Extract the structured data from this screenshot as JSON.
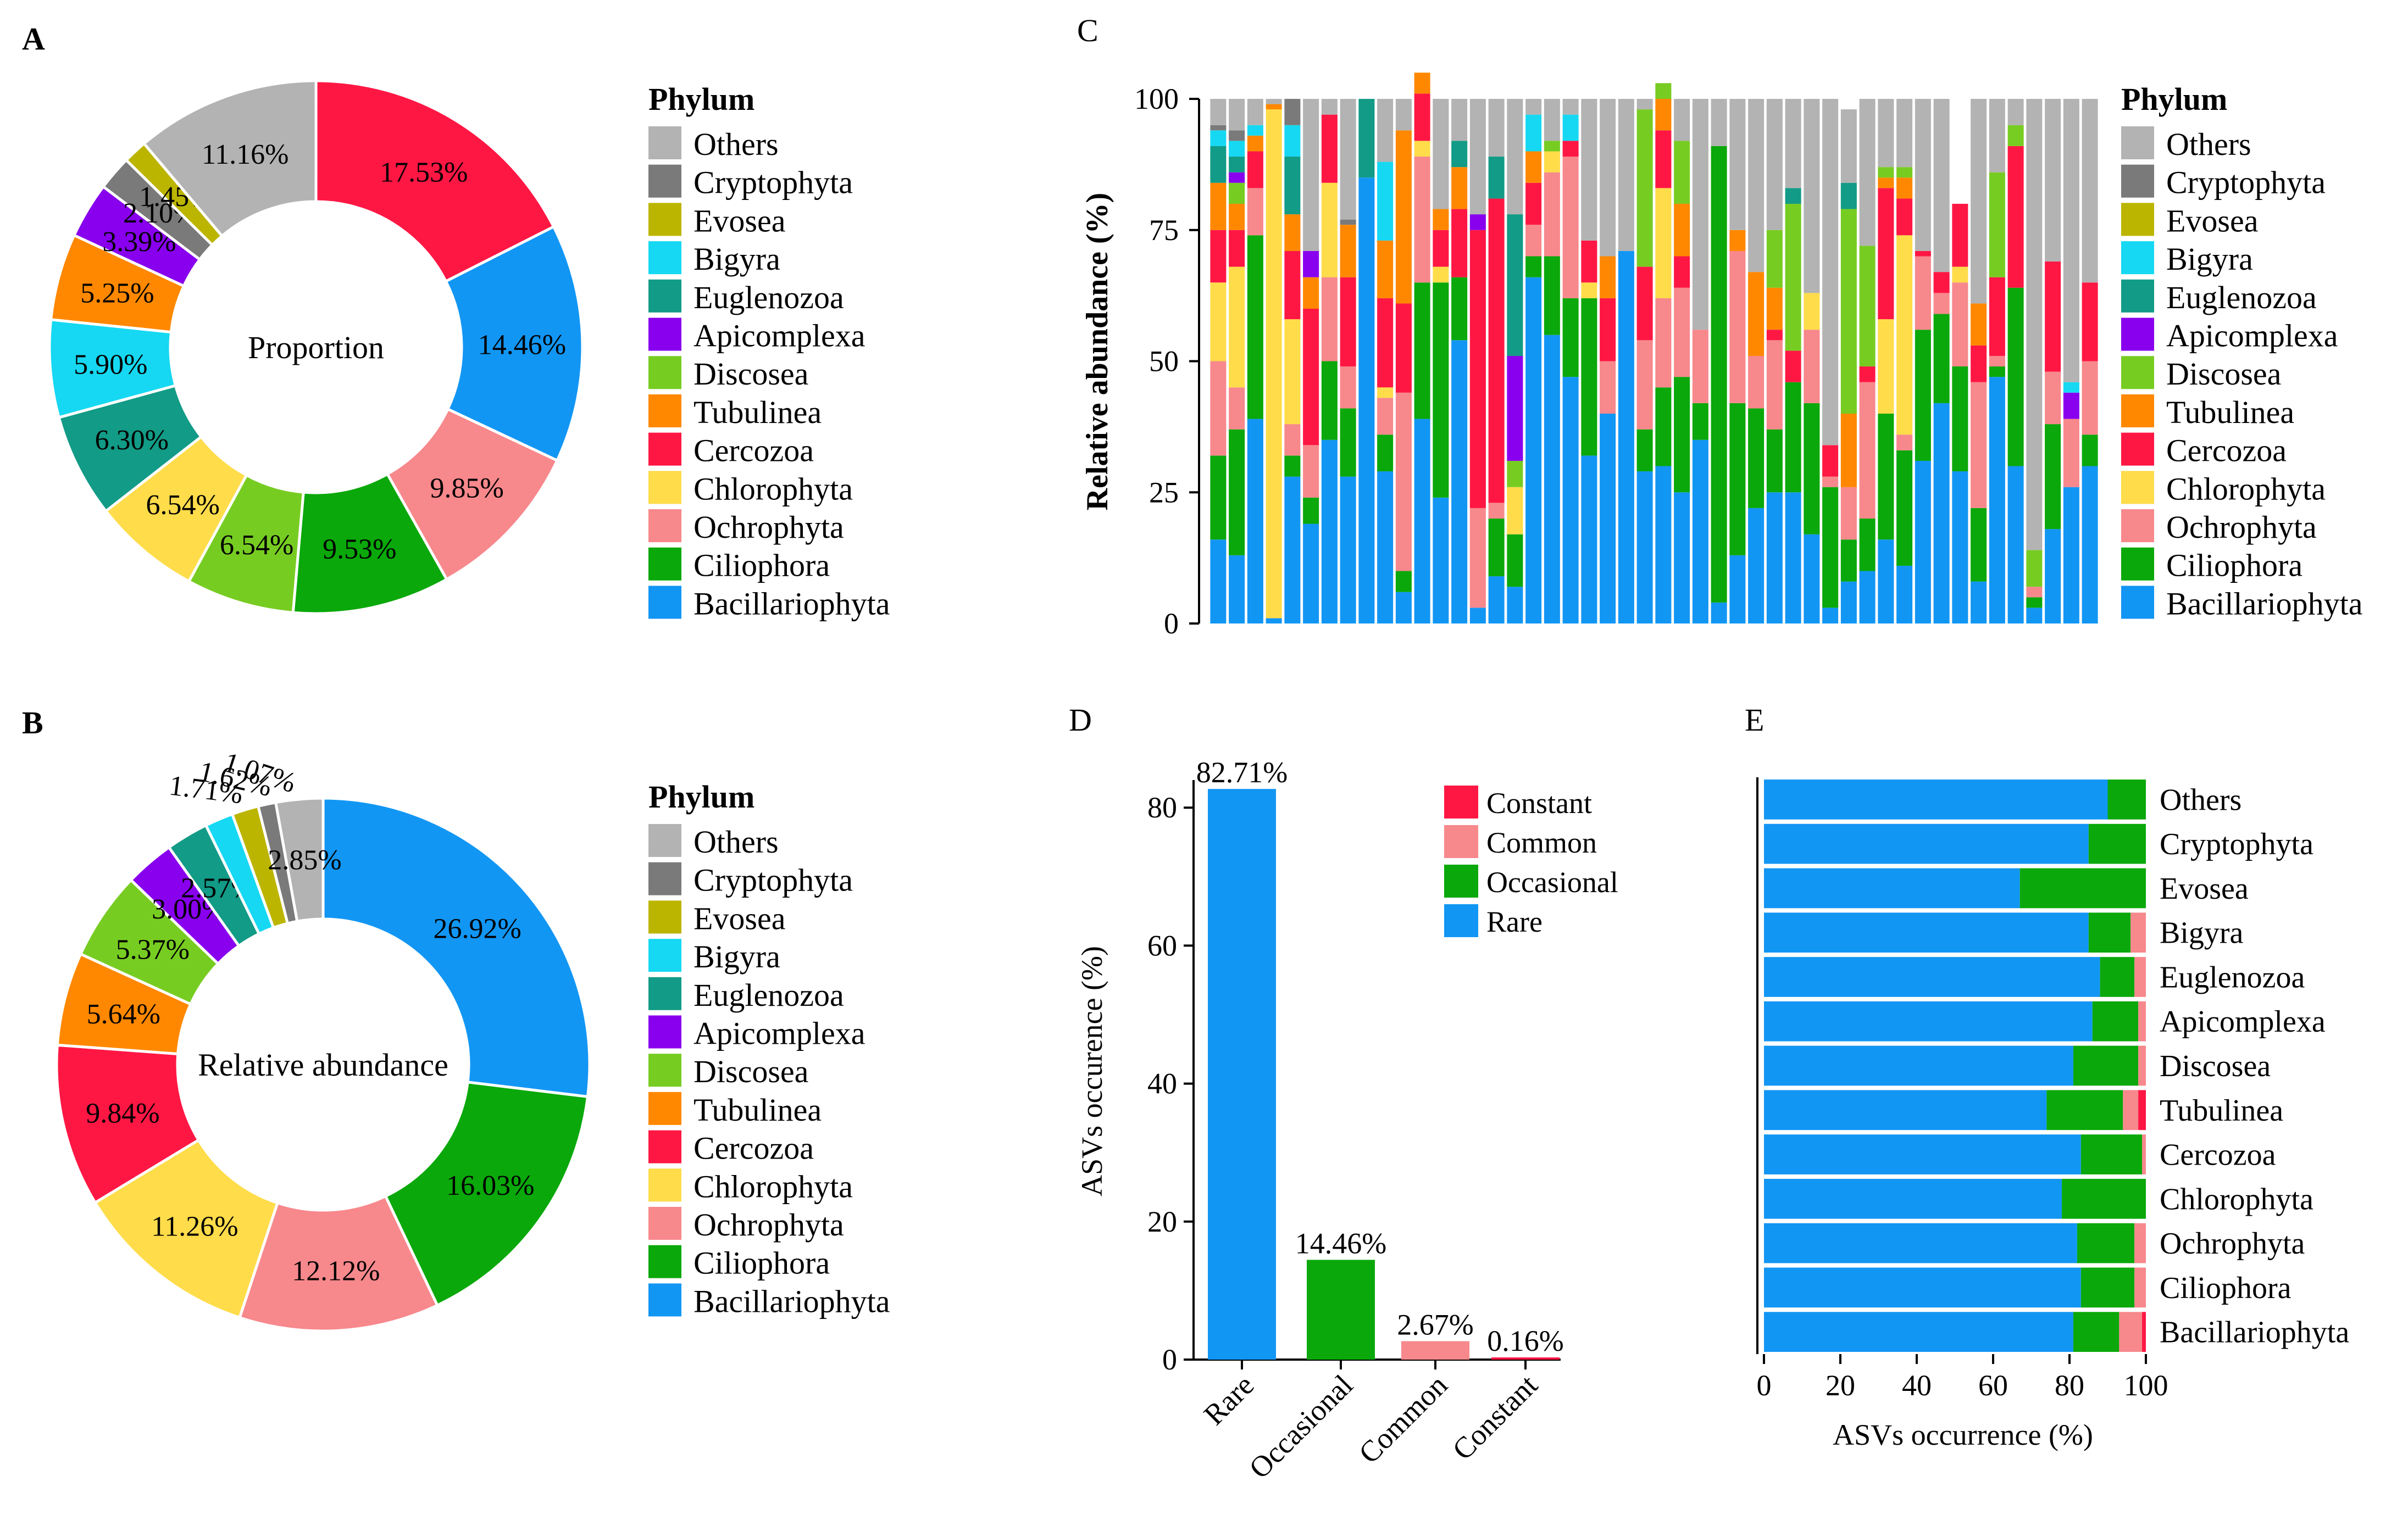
{
  "colors": {
    "Others": "#b3b3b3",
    "Cryptophyta": "#7a7a7a",
    "Evosea": "#bcb500",
    "Bigyra": "#16d8f2",
    "Euglenozoa": "#129b86",
    "Apicomplexa": "#8800ee",
    "Discosea": "#77cc22",
    "Tubulinea": "#ff8800",
    "Cercozoa": "#ff1744",
    "Chlorophyta": "#ffdc4a",
    "Ochrophyta": "#f7888c",
    "Ciliophora": "#0aa80a",
    "Bacillariophyta": "#1296f4",
    "Constant": "#ff1744",
    "Common": "#f7888c",
    "Occasional": "#0aa80a",
    "Rare": "#1296f4"
  },
  "legend": {
    "title": "Phylum",
    "items": [
      "Others",
      "Cryptophyta",
      "Evosea",
      "Bigyra",
      "Euglenozoa",
      "Apicomplexa",
      "Discosea",
      "Tubulinea",
      "Cercozoa",
      "Chlorophyta",
      "Ochrophyta",
      "Ciliophora",
      "Bacillariophyta"
    ]
  },
  "panel_labels": {
    "A": "A",
    "B": "B",
    "C": "C",
    "D": "D",
    "E": "E"
  },
  "chart_data": [
    {
      "id": "A",
      "type": "pie",
      "title": "Proportion",
      "slices": [
        {
          "name": "Cercozoa",
          "value": 17.53,
          "label": "17.53%"
        },
        {
          "name": "Bacillariophyta",
          "value": 14.46,
          "label": "14.46%"
        },
        {
          "name": "Ochrophyta",
          "value": 9.85,
          "label": "9.85%"
        },
        {
          "name": "Ciliophora",
          "value": 9.53,
          "label": "9.53%"
        },
        {
          "name": "Discosea",
          "value": 6.54,
          "label": "6.54%"
        },
        {
          "name": "Chlorophyta",
          "value": 6.54,
          "label": "6.54%"
        },
        {
          "name": "Euglenozoa",
          "value": 6.3,
          "label": "6.30%"
        },
        {
          "name": "Bigyra",
          "value": 5.9,
          "label": "5.90%"
        },
        {
          "name": "Tubulinea",
          "value": 5.25,
          "label": "5.25%"
        },
        {
          "name": "Apicomplexa",
          "value": 3.39,
          "label": "3.39%"
        },
        {
          "name": "Cryptophyta",
          "value": 2.1,
          "label": "2.10%"
        },
        {
          "name": "Evosea",
          "value": 1.45,
          "label": "1.45%"
        },
        {
          "name": "Others",
          "value": 11.16,
          "label": "11.16%"
        }
      ]
    },
    {
      "id": "B",
      "type": "pie",
      "title": "Relative abundance",
      "slices": [
        {
          "name": "Bacillariophyta",
          "value": 26.92,
          "label": "26.92%"
        },
        {
          "name": "Ciliophora",
          "value": 16.03,
          "label": "16.03%"
        },
        {
          "name": "Ochrophyta",
          "value": 12.12,
          "label": "12.12%"
        },
        {
          "name": "Chlorophyta",
          "value": 11.26,
          "label": "11.26%"
        },
        {
          "name": "Cercozoa",
          "value": 9.84,
          "label": "9.84%"
        },
        {
          "name": "Tubulinea",
          "value": 5.64,
          "label": "5.64%"
        },
        {
          "name": "Discosea",
          "value": 5.37,
          "label": "5.37%"
        },
        {
          "name": "Apicomplexa",
          "value": 3.0,
          "label": "3.00%"
        },
        {
          "name": "Euglenozoa",
          "value": 2.57,
          "label": "2.57%"
        },
        {
          "name": "Bigyra",
          "value": 1.71,
          "label": "1.71%"
        },
        {
          "name": "Evosea",
          "value": 1.62,
          "label": "1.62%"
        },
        {
          "name": "Cryptophyta",
          "value": 1.07,
          "label": "1.07%"
        },
        {
          "name": "Others",
          "value": 2.85,
          "label": "2.85%"
        }
      ]
    },
    {
      "id": "C",
      "type": "bar",
      "stacked": true,
      "ylabel": "Relative abundance (%)",
      "ylim": [
        0,
        100
      ],
      "yticks": [
        "0",
        "25",
        "50",
        "75",
        "100"
      ],
      "sample_count": 48,
      "stack_order": [
        "Bacillariophyta",
        "Ciliophora",
        "Ochrophyta",
        "Chlorophyta",
        "Cercozoa",
        "Tubulinea",
        "Discosea",
        "Apicomplexa",
        "Euglenozoa",
        "Bigyra",
        "Evosea",
        "Cryptophyta",
        "Others"
      ],
      "series": [
        {
          "name": "Bacillariophyta",
          "values": [
            16,
            13,
            39,
            1,
            28,
            19,
            35,
            28,
            85,
            29,
            6,
            39,
            24,
            54,
            3,
            9,
            7,
            66,
            55,
            47,
            32,
            40,
            71,
            29,
            30,
            25,
            35,
            4,
            13,
            22,
            25,
            25,
            17,
            3,
            8,
            10,
            16,
            11,
            31,
            42,
            29,
            8,
            47,
            30,
            3,
            18,
            26,
            30
          ]
        },
        {
          "name": "Ciliophora",
          "values": [
            16,
            24,
            35,
            0,
            4,
            5,
            15,
            13,
            0,
            7,
            4,
            26,
            41,
            12,
            0,
            11,
            10,
            4,
            15,
            15,
            30,
            0,
            0,
            8,
            15,
            22,
            7,
            87,
            29,
            19,
            12,
            21,
            25,
            23,
            8,
            10,
            24,
            22,
            25,
            17,
            20,
            14,
            2,
            34,
            2,
            20,
            0,
            6
          ]
        },
        {
          "name": "Ochrophyta",
          "values": [
            18,
            8,
            9,
            0,
            6,
            10,
            16,
            8,
            0,
            7,
            34,
            24,
            0,
            0,
            19,
            3,
            0,
            6,
            16,
            27,
            0,
            10,
            0,
            17,
            17,
            17,
            14,
            0,
            29,
            10,
            17,
            0,
            14,
            2,
            10,
            26,
            0,
            3,
            14,
            4,
            16,
            24,
            2,
            0,
            2,
            10,
            13,
            14
          ]
        },
        {
          "name": "Chlorophyta",
          "values": [
            15,
            23,
            0,
            97,
            20,
            0,
            18,
            0,
            0,
            2,
            0,
            3,
            3,
            0,
            0,
            0,
            9,
            0,
            4,
            0,
            3,
            0,
            0,
            0,
            21,
            0,
            0,
            0,
            0,
            0,
            0,
            0,
            7,
            0,
            0,
            0,
            18,
            38,
            0,
            0,
            3,
            0,
            0,
            0,
            0,
            0,
            0,
            0
          ]
        },
        {
          "name": "Cercozoa",
          "values": [
            10,
            7,
            7,
            0,
            13,
            26,
            13,
            17,
            0,
            17,
            17,
            9,
            7,
            13,
            53,
            58,
            0,
            8,
            0,
            3,
            8,
            12,
            0,
            14,
            11,
            6,
            0,
            0,
            0,
            0,
            2,
            6,
            0,
            6,
            0,
            3,
            25,
            7,
            1,
            4,
            12,
            7,
            15,
            27,
            0,
            21,
            0,
            15
          ]
        },
        {
          "name": "Tubulinea",
          "values": [
            9,
            5,
            3,
            1,
            7,
            6,
            0,
            10,
            0,
            11,
            33,
            4,
            4,
            8,
            0,
            0,
            0,
            6,
            0,
            0,
            0,
            8,
            0,
            0,
            6,
            10,
            0,
            0,
            4,
            16,
            8,
            0,
            0,
            0,
            14,
            0,
            2,
            4,
            0,
            0,
            0,
            8,
            0,
            0,
            0,
            0,
            0,
            0
          ]
        },
        {
          "name": "Discosea",
          "values": [
            0,
            4,
            0,
            0,
            0,
            0,
            0,
            0,
            0,
            0,
            0,
            0,
            0,
            0,
            0,
            0,
            5,
            0,
            2,
            0,
            0,
            0,
            0,
            30,
            3,
            12,
            0,
            0,
            0,
            0,
            11,
            28,
            0,
            0,
            39,
            23,
            2,
            2,
            0,
            0,
            0,
            0,
            20,
            4,
            7,
            0,
            0,
            0
          ]
        },
        {
          "name": "Apicomplexa",
          "values": [
            0,
            2,
            0,
            0,
            0,
            5,
            0,
            0,
            0,
            0,
            0,
            0,
            0,
            0,
            3,
            0,
            20,
            0,
            0,
            0,
            0,
            0,
            0,
            0,
            0,
            0,
            0,
            0,
            0,
            0,
            0,
            0,
            0,
            0,
            0,
            0,
            0,
            0,
            0,
            0,
            0,
            0,
            0,
            0,
            0,
            0,
            5,
            0
          ]
        },
        {
          "name": "Euglenozoa",
          "values": [
            7,
            3,
            0,
            0,
            11,
            0,
            0,
            0,
            15,
            0,
            0,
            0,
            0,
            5,
            0,
            8,
            27,
            0,
            0,
            0,
            0,
            0,
            0,
            0,
            0,
            0,
            0,
            0,
            0,
            0,
            0,
            3,
            0,
            0,
            5,
            0,
            0,
            0,
            0,
            0,
            0,
            0,
            0,
            0,
            0,
            0,
            0,
            0
          ]
        },
        {
          "name": "Bigyra",
          "values": [
            3,
            3,
            2,
            0,
            6,
            0,
            0,
            0,
            0,
            15,
            0,
            0,
            0,
            0,
            0,
            0,
            0,
            7,
            0,
            5,
            0,
            0,
            0,
            0,
            0,
            0,
            0,
            0,
            0,
            0,
            0,
            0,
            0,
            0,
            0,
            0,
            0,
            0,
            0,
            0,
            0,
            0,
            0,
            0,
            0,
            0,
            2,
            0
          ]
        },
        {
          "name": "Evosea",
          "values": [
            0,
            0,
            0,
            0,
            0,
            0,
            0,
            0,
            0,
            0,
            0,
            0,
            0,
            0,
            0,
            0,
            0,
            0,
            0,
            0,
            0,
            0,
            0,
            0,
            0,
            0,
            0,
            0,
            0,
            0,
            0,
            0,
            0,
            0,
            0,
            0,
            0,
            0,
            0,
            0,
            0,
            0,
            0,
            0,
            0,
            0,
            0,
            0
          ]
        },
        {
          "name": "Cryptophyta",
          "values": [
            1,
            2,
            0,
            0,
            5,
            0,
            0,
            1,
            0,
            0,
            0,
            0,
            0,
            0,
            0,
            0,
            0,
            0,
            0,
            0,
            0,
            0,
            0,
            0,
            0,
            0,
            0,
            0,
            0,
            0,
            0,
            0,
            0,
            0,
            0,
            0,
            0,
            0,
            0,
            0,
            0,
            0,
            0,
            0,
            0,
            0,
            0,
            0
          ]
        },
        {
          "name": "Others",
          "values": [
            5,
            6,
            5,
            1,
            0,
            29,
            3,
            23,
            0,
            12,
            6,
            0,
            21,
            8,
            22,
            11,
            22,
            3,
            8,
            3,
            27,
            30,
            29,
            2,
            0,
            8,
            44,
            9,
            25,
            33,
            25,
            17,
            37,
            66,
            14,
            28,
            13,
            13,
            29,
            33,
            0,
            39,
            14,
            5,
            86,
            31,
            54,
            35
          ]
        }
      ]
    },
    {
      "id": "D",
      "type": "bar",
      "ylabel": "ASVs occurence (%)",
      "ylim": [
        0,
        84
      ],
      "yticks": [
        "0",
        "20",
        "40",
        "60",
        "80"
      ],
      "categories": [
        "Rare",
        "Occasional",
        "Common",
        "Constant"
      ],
      "values": [
        82.71,
        14.46,
        2.67,
        0.16
      ],
      "value_labels": [
        "82.71%",
        "14.46%",
        "2.67%",
        "0.16%"
      ],
      "legend": [
        "Constant",
        "Common",
        "Occasional",
        "Rare"
      ]
    },
    {
      "id": "E",
      "type": "bar",
      "orientation": "horizontal",
      "stacked": true,
      "xlabel": "ASVs occurrence (%)",
      "xlim": [
        0,
        100
      ],
      "xticks": [
        "0",
        "20",
        "40",
        "60",
        "80",
        "100"
      ],
      "categories": [
        "Others",
        "Cryptophyta",
        "Evosea",
        "Bigyra",
        "Euglenozoa",
        "Apicomplexa",
        "Discosea",
        "Tubulinea",
        "Cercozoa",
        "Chlorophyta",
        "Ochrophyta",
        "Ciliophora",
        "Bacillariophyta"
      ],
      "series": [
        {
          "name": "Rare",
          "values": [
            90,
            85,
            67,
            85,
            88,
            86,
            81,
            74,
            83,
            78,
            82,
            83,
            81
          ]
        },
        {
          "name": "Occasional",
          "values": [
            10,
            15,
            33,
            11,
            9,
            12,
            17,
            20,
            16,
            22,
            15,
            14,
            12
          ]
        },
        {
          "name": "Common",
          "values": [
            0,
            0,
            0,
            4,
            3,
            2,
            2,
            4,
            1,
            0,
            3,
            3,
            6
          ]
        },
        {
          "name": "Constant",
          "values": [
            0,
            0,
            0,
            0,
            0,
            0,
            0,
            2,
            0,
            0,
            0,
            0,
            1
          ]
        }
      ]
    }
  ]
}
